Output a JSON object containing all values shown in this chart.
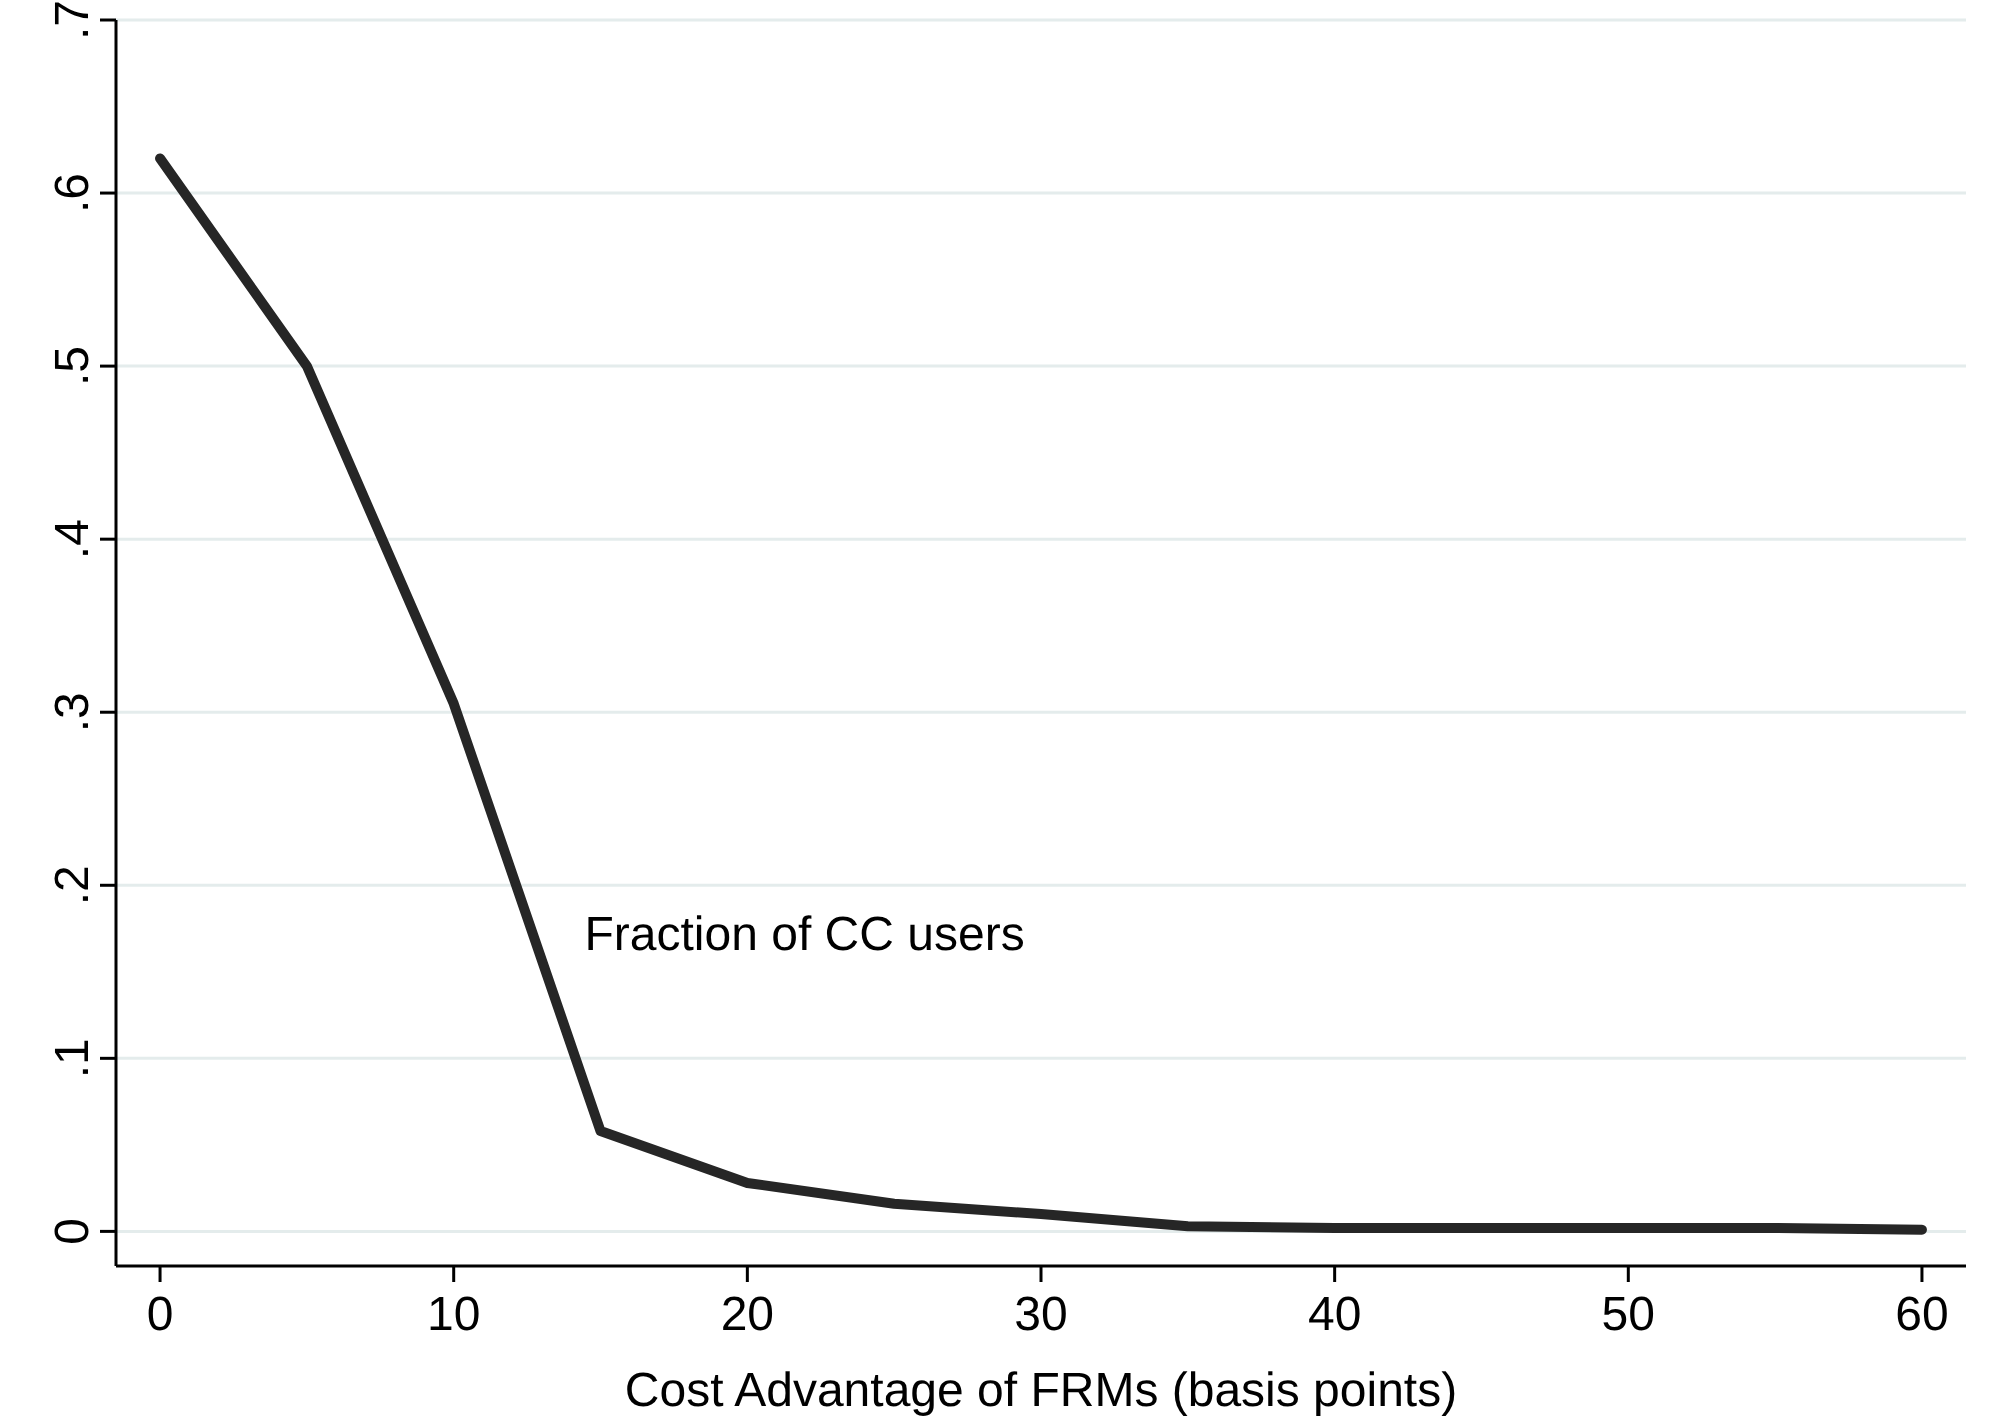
{
  "chart_data": {
    "type": "line",
    "xlabel": "Cost Advantage of FRMs (basis points)",
    "x": [
      0,
      5,
      10,
      15,
      20,
      25,
      30,
      35,
      40,
      45,
      50,
      55,
      60
    ],
    "series": [
      {
        "name": "Fraction of CC users",
        "color": "#262626",
        "values": [
          0.62,
          0.5,
          0.305,
          0.058,
          0.028,
          0.016,
          0.01,
          0.003,
          0.002,
          0.002,
          0.002,
          0.002,
          0.001
        ]
      }
    ],
    "xlim": [
      -1.5,
      61.5
    ],
    "xticks": [
      0,
      10,
      20,
      30,
      40,
      50,
      60
    ],
    "ylim": [
      -0.02,
      0.7
    ],
    "yticks": [
      {
        "value": 0,
        "label": "0"
      },
      {
        "value": 0.1,
        "label": ".1"
      },
      {
        "value": 0.2,
        "label": ".2"
      },
      {
        "value": 0.3,
        "label": ".3"
      },
      {
        "value": 0.4,
        "label": ".4"
      },
      {
        "value": 0.5,
        "label": ".5"
      },
      {
        "value": 0.6,
        "label": ".6"
      },
      {
        "value": 0.7,
        "label": ".7"
      }
    ],
    "grid": "y",
    "line_style": "solid",
    "marker": "none"
  }
}
